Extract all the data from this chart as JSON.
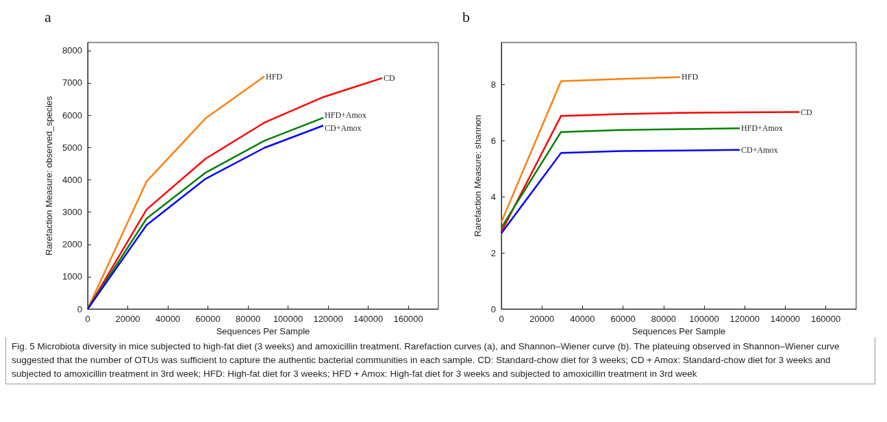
{
  "chart_data": [
    {
      "type": "line",
      "title": "a",
      "xlabel": "Sequences Per Sample",
      "ylabel": "Rarefaction Measure: observed_species",
      "xlim": [
        0,
        175000
      ],
      "xticks": [
        0,
        20000,
        40000,
        60000,
        80000,
        100000,
        120000,
        140000,
        160000
      ],
      "ylim": [
        0,
        8250
      ],
      "yticks": [
        0,
        1000,
        2000,
        3000,
        4000,
        5000,
        6000,
        7000,
        8000
      ],
      "grid": false,
      "legend": false,
      "marker": "none",
      "line_style": "solid",
      "series": [
        {
          "name": "HFD",
          "color": "#ff7f0e",
          "x": [
            0,
            29400,
            58800,
            88200
          ],
          "values": [
            0,
            3950,
            5900,
            7200
          ]
        },
        {
          "name": "CD",
          "color": "#ff0000",
          "x": [
            0,
            29400,
            58800,
            88200,
            117600,
            147000
          ],
          "values": [
            0,
            3080,
            4650,
            5770,
            6560,
            7150
          ]
        },
        {
          "name": "HFD+Amox",
          "color": "#008000",
          "x": [
            0,
            29400,
            58800,
            88200,
            117600
          ],
          "values": [
            0,
            2800,
            4220,
            5210,
            5920
          ]
        },
        {
          "name": "CD+Amox",
          "color": "#0000ff",
          "x": [
            0,
            29400,
            58800,
            88200,
            117600
          ],
          "values": [
            0,
            2600,
            4030,
            4990,
            5680
          ]
        }
      ],
      "annotations": [
        "Fig. 5  Microbiota diversity in mice subjected to high-fat diet (3 weeks) and amoxicillin treatment. Rarefaction curves (a), and Shannon–Wiener curve (b). The plateuing observed in Shannon–Wiener curve suggested that the number of OTUs was sufficient to capture the authentic bacterial communities in each sample. CD: Standard-chow diet for 3 weeks; CD + Amox: Standard-chow diet for 3 weeks and subjected to amoxicillin treatment in 3rd week; HFD: High-fat diet for 3 weeks; HFD + Amox: High-fat diet for 3 weeks and subjected to amoxicillin treatment in 3rd week"
      ]
    },
    {
      "type": "line",
      "title": "b",
      "xlabel": "Sequences Per Sample",
      "ylabel": "Rarefaction Measure: shannon",
      "xlim": [
        0,
        175000
      ],
      "xticks": [
        0,
        20000,
        40000,
        60000,
        80000,
        100000,
        120000,
        140000,
        160000
      ],
      "ylim": [
        0,
        9.5
      ],
      "yticks": [
        0,
        2,
        4,
        6,
        8
      ],
      "grid": false,
      "legend": false,
      "marker": "none",
      "line_style": "solid",
      "series": [
        {
          "name": "HFD",
          "color": "#ff7f0e",
          "x": [
            0,
            29400,
            58800,
            88200
          ],
          "values": [
            3.1,
            8.12,
            8.2,
            8.27
          ]
        },
        {
          "name": "CD",
          "color": "#ff0000",
          "x": [
            0,
            29400,
            58800,
            88200,
            117600,
            147000
          ],
          "values": [
            2.75,
            6.88,
            6.95,
            6.99,
            7.01,
            7.02
          ]
        },
        {
          "name": "HFD+Amox",
          "color": "#008000",
          "x": [
            0,
            29400,
            58800,
            88200,
            117600
          ],
          "values": [
            2.9,
            6.31,
            6.38,
            6.41,
            6.44
          ]
        },
        {
          "name": "CD+Amox",
          "color": "#0000ff",
          "x": [
            0,
            29400,
            58800,
            88200,
            117600
          ],
          "values": [
            2.7,
            5.56,
            5.63,
            5.65,
            5.67
          ]
        }
      ]
    }
  ]
}
